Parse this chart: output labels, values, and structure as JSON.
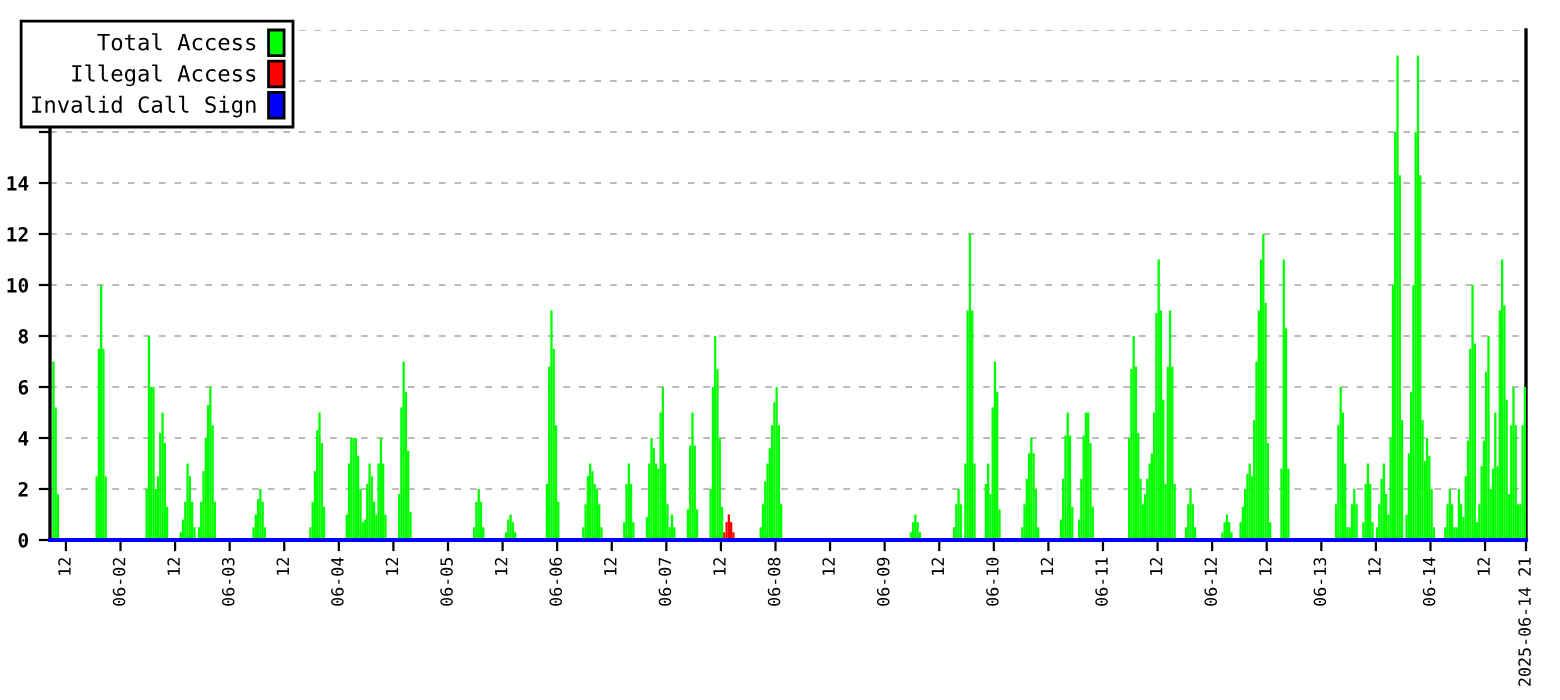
{
  "chart_data": {
    "type": "bar",
    "xlim": [
      "2025-06-01T08:30",
      "2025-06-14T21:00"
    ],
    "xticks": [
      {
        "value": "2025-06-01T12:00",
        "label": "12"
      },
      {
        "value": "2025-06-02T00:00",
        "label": "06-02"
      },
      {
        "value": "2025-06-02T12:00",
        "label": "12"
      },
      {
        "value": "2025-06-03T00:00",
        "label": "06-03"
      },
      {
        "value": "2025-06-03T12:00",
        "label": "12"
      },
      {
        "value": "2025-06-04T00:00",
        "label": "06-04"
      },
      {
        "value": "2025-06-04T12:00",
        "label": "12"
      },
      {
        "value": "2025-06-05T00:00",
        "label": "06-05"
      },
      {
        "value": "2025-06-05T12:00",
        "label": "12"
      },
      {
        "value": "2025-06-06T00:00",
        "label": "06-06"
      },
      {
        "value": "2025-06-06T12:00",
        "label": "12"
      },
      {
        "value": "2025-06-07T00:00",
        "label": "06-07"
      },
      {
        "value": "2025-06-07T12:00",
        "label": "12"
      },
      {
        "value": "2025-06-08T00:00",
        "label": "06-08"
      },
      {
        "value": "2025-06-08T12:00",
        "label": "12"
      },
      {
        "value": "2025-06-09T00:00",
        "label": "06-09"
      },
      {
        "value": "2025-06-09T12:00",
        "label": "12"
      },
      {
        "value": "2025-06-10T00:00",
        "label": "06-10"
      },
      {
        "value": "2025-06-10T12:00",
        "label": "12"
      },
      {
        "value": "2025-06-11T00:00",
        "label": "06-11"
      },
      {
        "value": "2025-06-11T12:00",
        "label": "12"
      },
      {
        "value": "2025-06-12T00:00",
        "label": "06-12"
      },
      {
        "value": "2025-06-12T12:00",
        "label": "12"
      },
      {
        "value": "2025-06-13T00:00",
        "label": "06-13"
      },
      {
        "value": "2025-06-13T12:00",
        "label": "12"
      },
      {
        "value": "2025-06-14T00:00",
        "label": "06-14"
      },
      {
        "value": "2025-06-14T12:00",
        "label": "12"
      },
      {
        "value": "2025-06-14T21:00",
        "label": "2025-06-14 21"
      }
    ],
    "ylim": [
      0,
      20
    ],
    "yticks": [
      0,
      2,
      4,
      6,
      8,
      10,
      12,
      14,
      {
        "value": 16,
        "label": null
      },
      {
        "value": 18,
        "label": null
      },
      {
        "value": 20,
        "label": null
      }
    ],
    "grid": "y",
    "legend": "top left",
    "series": [
      {
        "name": "Total Access",
        "color": "#00ff00",
        "x": [
          "2025-06-01T09:00",
          "2025-06-01T09:30",
          "2025-06-01T10:00",
          "2025-06-01T18:30",
          "2025-06-01T19:00",
          "2025-06-01T19:30",
          "2025-06-01T20:00",
          "2025-06-01T20:30",
          "2025-06-02T05:30",
          "2025-06-02T06:00",
          "2025-06-02T06:30",
          "2025-06-02T07:00",
          "2025-06-02T07:30",
          "2025-06-02T08:00",
          "2025-06-02T08:30",
          "2025-06-02T09:00",
          "2025-06-02T09:30",
          "2025-06-02T10:00",
          "2025-06-02T13:00",
          "2025-06-02T13:30",
          "2025-06-02T14:00",
          "2025-06-02T14:30",
          "2025-06-02T15:00",
          "2025-06-02T15:30",
          "2025-06-02T16:00",
          "2025-06-02T17:00",
          "2025-06-02T17:30",
          "2025-06-02T18:00",
          "2025-06-02T18:30",
          "2025-06-02T19:00",
          "2025-06-02T19:30",
          "2025-06-02T20:00",
          "2025-06-02T20:30",
          "2025-06-03T05:00",
          "2025-06-03T05:30",
          "2025-06-03T06:00",
          "2025-06-03T06:30",
          "2025-06-03T07:00",
          "2025-06-03T07:30",
          "2025-06-03T17:30",
          "2025-06-03T18:00",
          "2025-06-03T18:30",
          "2025-06-03T19:00",
          "2025-06-03T19:30",
          "2025-06-03T20:00",
          "2025-06-03T20:30",
          "2025-06-04T01:30",
          "2025-06-04T02:00",
          "2025-06-04T02:30",
          "2025-06-04T03:00",
          "2025-06-04T03:30",
          "2025-06-04T04:00",
          "2025-06-04T04:30",
          "2025-06-04T05:00",
          "2025-06-04T05:30",
          "2025-06-04T06:00",
          "2025-06-04T06:30",
          "2025-06-04T07:00",
          "2025-06-04T07:30",
          "2025-06-04T08:00",
          "2025-06-04T08:30",
          "2025-06-04T09:00",
          "2025-06-04T09:30",
          "2025-06-04T10:00",
          "2025-06-04T13:00",
          "2025-06-04T13:30",
          "2025-06-04T14:00",
          "2025-06-04T14:30",
          "2025-06-04T15:00",
          "2025-06-04T15:30",
          "2025-06-05T05:30",
          "2025-06-05T06:00",
          "2025-06-05T06:30",
          "2025-06-05T07:00",
          "2025-06-05T07:30",
          "2025-06-05T12:30",
          "2025-06-05T13:00",
          "2025-06-05T13:30",
          "2025-06-05T14:00",
          "2025-06-05T14:30",
          "2025-06-05T21:30",
          "2025-06-05T22:00",
          "2025-06-05T22:30",
          "2025-06-05T23:00",
          "2025-06-05T23:30",
          "2025-06-06T00:00",
          "2025-06-06T05:30",
          "2025-06-06T06:00",
          "2025-06-06T06:30",
          "2025-06-06T07:00",
          "2025-06-06T07:30",
          "2025-06-06T08:00",
          "2025-06-06T08:30",
          "2025-06-06T09:00",
          "2025-06-06T09:30",
          "2025-06-06T14:30",
          "2025-06-06T15:00",
          "2025-06-06T15:30",
          "2025-06-06T16:00",
          "2025-06-06T16:30",
          "2025-06-06T19:30",
          "2025-06-06T20:00",
          "2025-06-06T20:30",
          "2025-06-06T21:00",
          "2025-06-06T21:30",
          "2025-06-06T22:00",
          "2025-06-06T22:30",
          "2025-06-06T23:00",
          "2025-06-06T23:30",
          "2025-06-07T00:00",
          "2025-06-07T00:30",
          "2025-06-07T01:00",
          "2025-06-07T01:30",
          "2025-06-07T04:30",
          "2025-06-07T05:00",
          "2025-06-07T05:30",
          "2025-06-07T06:00",
          "2025-06-07T06:30",
          "2025-06-07T09:30",
          "2025-06-07T10:00",
          "2025-06-07T10:30",
          "2025-06-07T11:00",
          "2025-06-07T11:30",
          "2025-06-07T12:00",
          "2025-06-07T20:30",
          "2025-06-07T21:00",
          "2025-06-07T21:30",
          "2025-06-07T22:00",
          "2025-06-07T22:30",
          "2025-06-07T23:00",
          "2025-06-07T23:30",
          "2025-06-08T00:00",
          "2025-06-08T00:30",
          "2025-06-08T01:00",
          "2025-06-09T05:30",
          "2025-06-09T06:00",
          "2025-06-09T06:30",
          "2025-06-09T07:00",
          "2025-06-09T07:30",
          "2025-06-09T15:00",
          "2025-06-09T15:30",
          "2025-06-09T16:00",
          "2025-06-09T16:30",
          "2025-06-09T17:30",
          "2025-06-09T18:00",
          "2025-06-09T18:30",
          "2025-06-09T19:00",
          "2025-06-09T19:30",
          "2025-06-09T22:00",
          "2025-06-09T22:30",
          "2025-06-09T23:00",
          "2025-06-09T23:30",
          "2025-06-10T00:00",
          "2025-06-10T00:30",
          "2025-06-10T01:00",
          "2025-06-10T06:00",
          "2025-06-10T06:30",
          "2025-06-10T07:00",
          "2025-06-10T07:30",
          "2025-06-10T08:00",
          "2025-06-10T08:30",
          "2025-06-10T09:00",
          "2025-06-10T09:30",
          "2025-06-10T14:30",
          "2025-06-10T15:00",
          "2025-06-10T15:30",
          "2025-06-10T16:00",
          "2025-06-10T16:30",
          "2025-06-10T17:00",
          "2025-06-10T18:30",
          "2025-06-10T19:00",
          "2025-06-10T19:30",
          "2025-06-10T20:00",
          "2025-06-10T20:30",
          "2025-06-10T21:00",
          "2025-06-10T21:30",
          "2025-06-11T05:30",
          "2025-06-11T06:00",
          "2025-06-11T06:30",
          "2025-06-11T07:00",
          "2025-06-11T07:30",
          "2025-06-11T08:00",
          "2025-06-11T08:30",
          "2025-06-11T09:00",
          "2025-06-11T09:30",
          "2025-06-11T10:00",
          "2025-06-11T10:30",
          "2025-06-11T11:00",
          "2025-06-11T11:30",
          "2025-06-11T12:00",
          "2025-06-11T12:30",
          "2025-06-11T13:00",
          "2025-06-11T13:30",
          "2025-06-11T14:00",
          "2025-06-11T14:30",
          "2025-06-11T15:00",
          "2025-06-11T15:30",
          "2025-06-11T18:00",
          "2025-06-11T18:30",
          "2025-06-11T19:00",
          "2025-06-11T19:30",
          "2025-06-11T20:00",
          "2025-06-12T02:00",
          "2025-06-12T02:30",
          "2025-06-12T03:00",
          "2025-06-12T03:30",
          "2025-06-12T04:00",
          "2025-06-12T06:00",
          "2025-06-12T06:30",
          "2025-06-12T07:00",
          "2025-06-12T07:30",
          "2025-06-12T08:00",
          "2025-06-12T08:30",
          "2025-06-12T09:00",
          "2025-06-12T09:30",
          "2025-06-12T10:00",
          "2025-06-12T10:30",
          "2025-06-12T11:00",
          "2025-06-12T11:30",
          "2025-06-12T12:00",
          "2025-06-12T12:30",
          "2025-06-12T15:00",
          "2025-06-12T15:30",
          "2025-06-12T16:00",
          "2025-06-12T16:30",
          "2025-06-13T03:00",
          "2025-06-13T03:30",
          "2025-06-13T04:00",
          "2025-06-13T04:30",
          "2025-06-13T05:00",
          "2025-06-13T05:30",
          "2025-06-13T06:00",
          "2025-06-13T06:30",
          "2025-06-13T07:00",
          "2025-06-13T07:30",
          "2025-06-13T09:00",
          "2025-06-13T09:30",
          "2025-06-13T10:00",
          "2025-06-13T10:30",
          "2025-06-13T11:00",
          "2025-06-13T12:00",
          "2025-06-13T12:30",
          "2025-06-13T13:00",
          "2025-06-13T13:30",
          "2025-06-13T14:00",
          "2025-06-13T14:30",
          "2025-06-13T15:00",
          "2025-06-13T15:30",
          "2025-06-13T16:00",
          "2025-06-13T16:30",
          "2025-06-13T17:00",
          "2025-06-13T17:30",
          "2025-06-13T18:30",
          "2025-06-13T19:00",
          "2025-06-13T19:30",
          "2025-06-13T20:00",
          "2025-06-13T20:30",
          "2025-06-13T21:00",
          "2025-06-13T21:30",
          "2025-06-13T22:00",
          "2025-06-13T22:30",
          "2025-06-13T23:00",
          "2025-06-13T23:30",
          "2025-06-14T00:00",
          "2025-06-14T00:30",
          "2025-06-14T03:00",
          "2025-06-14T03:30",
          "2025-06-14T04:00",
          "2025-06-14T04:30",
          "2025-06-14T05:00",
          "2025-06-14T05:30",
          "2025-06-14T06:00",
          "2025-06-14T06:30",
          "2025-06-14T07:00",
          "2025-06-14T07:30",
          "2025-06-14T08:00",
          "2025-06-14T08:30",
          "2025-06-14T09:00",
          "2025-06-14T09:30",
          "2025-06-14T10:00",
          "2025-06-14T10:30",
          "2025-06-14T11:00",
          "2025-06-14T11:30",
          "2025-06-14T12:00",
          "2025-06-14T12:30",
          "2025-06-14T13:00",
          "2025-06-14T13:30",
          "2025-06-14T14:00",
          "2025-06-14T14:30",
          "2025-06-14T15:00",
          "2025-06-14T15:30",
          "2025-06-14T16:00",
          "2025-06-14T16:30",
          "2025-06-14T17:00",
          "2025-06-14T17:30",
          "2025-06-14T18:00",
          "2025-06-14T18:30",
          "2025-06-14T19:00",
          "2025-06-14T19:30",
          "2025-06-14T20:00",
          "2025-06-14T20:30"
        ],
        "values": [
          7,
          5.2,
          1.8,
          2.5,
          7.5,
          10,
          7.5,
          2.5,
          2,
          8,
          6,
          6,
          2,
          2.5,
          4.2,
          5,
          3.8,
          1.3,
          0.3,
          0.8,
          1.5,
          3,
          2.5,
          1.5,
          0.5,
          0.5,
          1.5,
          2.7,
          4,
          5.3,
          6,
          4.5,
          1.5,
          0.5,
          1,
          1.6,
          2,
          1.5,
          0.5,
          0.5,
          1.5,
          2.7,
          4.3,
          5,
          3.8,
          1.3,
          1,
          3,
          4,
          4,
          4,
          3.3,
          2,
          0.7,
          0.8,
          2.2,
          3,
          2.5,
          1.5,
          1,
          3,
          4,
          3,
          1,
          1.8,
          5.2,
          7,
          5.8,
          3.5,
          1.1,
          0.5,
          1.5,
          2,
          1.5,
          0.5,
          0.3,
          0.8,
          1,
          0.7,
          0.3,
          2.2,
          6.8,
          9,
          7.5,
          4.5,
          1.5,
          0.5,
          1.4,
          2.5,
          3,
          2.7,
          2.2,
          2,
          1.4,
          0.5,
          0.7,
          2.2,
          3,
          2.2,
          0.7,
          0.9,
          3,
          4,
          3.6,
          3,
          2.8,
          5,
          6,
          3,
          1.4,
          0.5,
          1,
          0.5,
          1.2,
          3.7,
          5,
          3.7,
          1.2,
          2,
          6,
          8,
          6.7,
          4,
          1.3,
          0.5,
          1.4,
          2.3,
          3,
          3.6,
          4.5,
          5.4,
          6,
          4.5,
          1.4,
          0.3,
          0.7,
          1,
          0.7,
          0.3,
          0.5,
          1.4,
          2,
          1.4,
          3,
          9,
          12,
          9,
          3,
          2.2,
          3,
          1.8,
          5.2,
          7,
          5.8,
          1.2,
          0.5,
          1.4,
          2.4,
          3.4,
          4,
          3.4,
          2,
          0.5,
          0.8,
          2.4,
          4.1,
          5,
          4.1,
          1.3,
          0.8,
          2.4,
          4.1,
          5,
          5,
          3.8,
          1.3,
          4,
          6.7,
          8,
          6.8,
          4.2,
          2.4,
          1.4,
          1.8,
          2.4,
          3,
          3.4,
          5,
          8.9,
          11,
          9,
          5.5,
          2.2,
          6.8,
          9,
          6.8,
          2.2,
          0.5,
          1.4,
          2,
          1.4,
          0.5,
          0.3,
          0.7,
          1,
          0.7,
          0.3,
          0.7,
          1.3,
          2,
          2.6,
          3,
          2.5,
          4.7,
          7,
          9,
          11,
          12,
          9.3,
          3.8,
          0.7,
          2.8,
          11,
          8.3,
          2.8,
          1.4,
          4.5,
          6,
          5,
          3,
          0.5,
          0.5,
          1.4,
          2,
          1.4,
          0.7,
          2.2,
          3,
          2.2,
          0.7,
          0.5,
          1.4,
          2.4,
          3,
          1.8,
          1,
          4,
          10,
          16,
          19,
          14.3,
          4.7,
          1,
          3.4,
          5.8,
          10,
          16,
          19,
          14.3,
          4.7,
          3.1,
          4,
          3.3,
          2,
          0.5,
          0.5,
          1.4,
          2,
          1.4,
          0.5,
          0.5,
          2,
          1.4,
          0.9,
          2.5,
          3.9,
          7.5,
          10,
          7.7,
          0.7,
          1.4,
          2.9,
          3.9,
          6.6,
          8,
          2,
          2.8,
          5,
          2.9,
          9,
          11,
          9.2,
          5.5,
          1.8,
          4.5,
          6,
          4.5,
          1.4,
          1.4,
          4.5,
          6
        ]
      },
      {
        "name": "Illegal Access",
        "color": "#ff0000",
        "x": [
          "2025-06-07T12:30",
          "2025-06-07T13:00",
          "2025-06-07T13:30",
          "2025-06-07T14:00",
          "2025-06-07T14:30"
        ],
        "values": [
          0.3,
          0.7,
          1,
          0.7,
          0.3
        ]
      },
      {
        "name": "Invalid Call Sign",
        "color": "#0000ff",
        "type": "line",
        "x": [
          "2025-06-01T08:30",
          "2025-06-14T21:00"
        ],
        "values": [
          0,
          0
        ]
      }
    ]
  }
}
